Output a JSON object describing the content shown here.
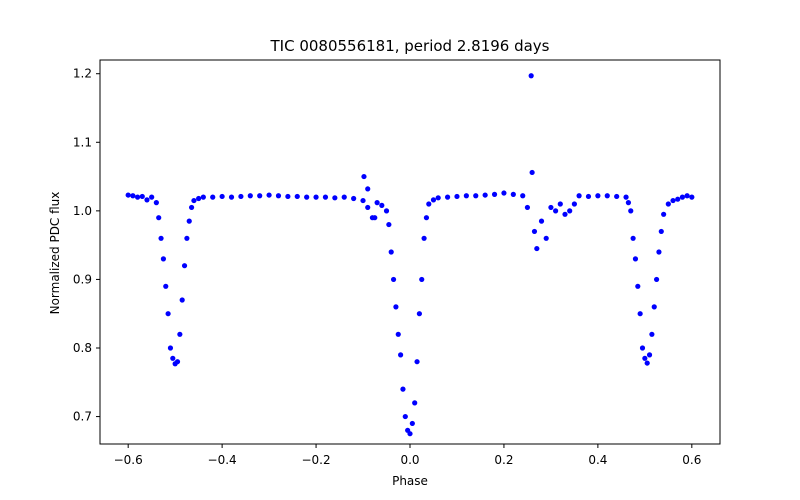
{
  "chart_data": {
    "type": "scatter",
    "title": "TIC 0080556181, period 2.8196 days",
    "xlabel": "Phase",
    "ylabel": "Normalized PDC flux",
    "xlim": [
      -0.66,
      0.66
    ],
    "ylim": [
      0.66,
      1.22
    ],
    "x_ticks": [
      -0.6,
      -0.4,
      -0.2,
      0.0,
      0.2,
      0.4,
      0.6
    ],
    "x_tick_labels": [
      "−0.6",
      "−0.4",
      "−0.2",
      "0.0",
      "0.2",
      "0.4",
      "0.6"
    ],
    "y_ticks": [
      0.7,
      0.8,
      0.9,
      1.0,
      1.1,
      1.2
    ],
    "y_tick_labels": [
      "0.7",
      "0.8",
      "0.9",
      "1.0",
      "1.1",
      "1.2"
    ],
    "grid": false,
    "legend": "none",
    "marker_color": "#0000ff",
    "series": [
      {
        "x": [
          -0.6,
          -0.59,
          -0.58,
          -0.57,
          -0.56,
          -0.55,
          -0.54,
          -0.535,
          -0.53,
          -0.525,
          -0.52,
          -0.515,
          -0.51,
          -0.505,
          -0.5,
          -0.495,
          -0.49,
          -0.485,
          -0.48,
          -0.475,
          -0.47,
          -0.465,
          -0.46,
          -0.45,
          -0.44,
          -0.42,
          -0.4,
          -0.38,
          -0.36,
          -0.34,
          -0.32,
          -0.3,
          -0.28,
          -0.26,
          -0.24,
          -0.22,
          -0.2,
          -0.18,
          -0.16,
          -0.14,
          -0.12,
          -0.1,
          -0.09,
          -0.08,
          -0.07,
          -0.06,
          -0.05,
          -0.045,
          -0.04,
          -0.035,
          -0.03,
          -0.025,
          -0.02,
          -0.015,
          -0.01,
          -0.005,
          0.0,
          0.005,
          0.01,
          0.015,
          0.02,
          0.025,
          0.03,
          0.035,
          0.04,
          0.05,
          0.06,
          0.08,
          0.1,
          0.12,
          0.14,
          0.16,
          0.18,
          0.2,
          0.22,
          0.24,
          0.25,
          0.26,
          0.265,
          0.27,
          0.28,
          0.29,
          0.3,
          0.31,
          0.32,
          0.33,
          0.34,
          0.35,
          0.36,
          0.38,
          0.4,
          0.42,
          0.44,
          0.46,
          0.465,
          0.47,
          0.475,
          0.48,
          0.485,
          0.49,
          0.495,
          0.5,
          0.505,
          0.51,
          0.515,
          0.52,
          0.525,
          0.53,
          0.535,
          0.54,
          0.55,
          0.56,
          0.57,
          0.58,
          0.59,
          0.6,
          -0.098,
          -0.09,
          0.258,
          -0.075
        ],
        "y": [
          1.023,
          1.022,
          1.02,
          1.021,
          1.016,
          1.02,
          1.012,
          0.99,
          0.96,
          0.93,
          0.89,
          0.85,
          0.8,
          0.785,
          0.777,
          0.78,
          0.82,
          0.87,
          0.92,
          0.96,
          0.985,
          1.005,
          1.015,
          1.018,
          1.02,
          1.02,
          1.021,
          1.02,
          1.021,
          1.022,
          1.022,
          1.023,
          1.022,
          1.021,
          1.021,
          1.02,
          1.02,
          1.02,
          1.019,
          1.02,
          1.018,
          1.015,
          1.005,
          0.99,
          1.012,
          1.008,
          1.0,
          0.98,
          0.94,
          0.9,
          0.86,
          0.82,
          0.79,
          0.74,
          0.7,
          0.68,
          0.675,
          0.69,
          0.72,
          0.78,
          0.85,
          0.9,
          0.96,
          0.99,
          1.01,
          1.016,
          1.019,
          1.02,
          1.021,
          1.022,
          1.022,
          1.023,
          1.024,
          1.026,
          1.024,
          1.022,
          1.005,
          1.056,
          0.97,
          0.945,
          0.985,
          0.96,
          1.005,
          1.0,
          1.01,
          0.995,
          1.0,
          1.01,
          1.022,
          1.021,
          1.022,
          1.022,
          1.021,
          1.02,
          1.012,
          1.0,
          0.96,
          0.93,
          0.89,
          0.85,
          0.8,
          0.785,
          0.778,
          0.79,
          0.82,
          0.86,
          0.9,
          0.94,
          0.97,
          0.995,
          1.01,
          1.015,
          1.017,
          1.02,
          1.022,
          1.02,
          1.05,
          1.032,
          1.197,
          0.99
        ]
      }
    ]
  }
}
